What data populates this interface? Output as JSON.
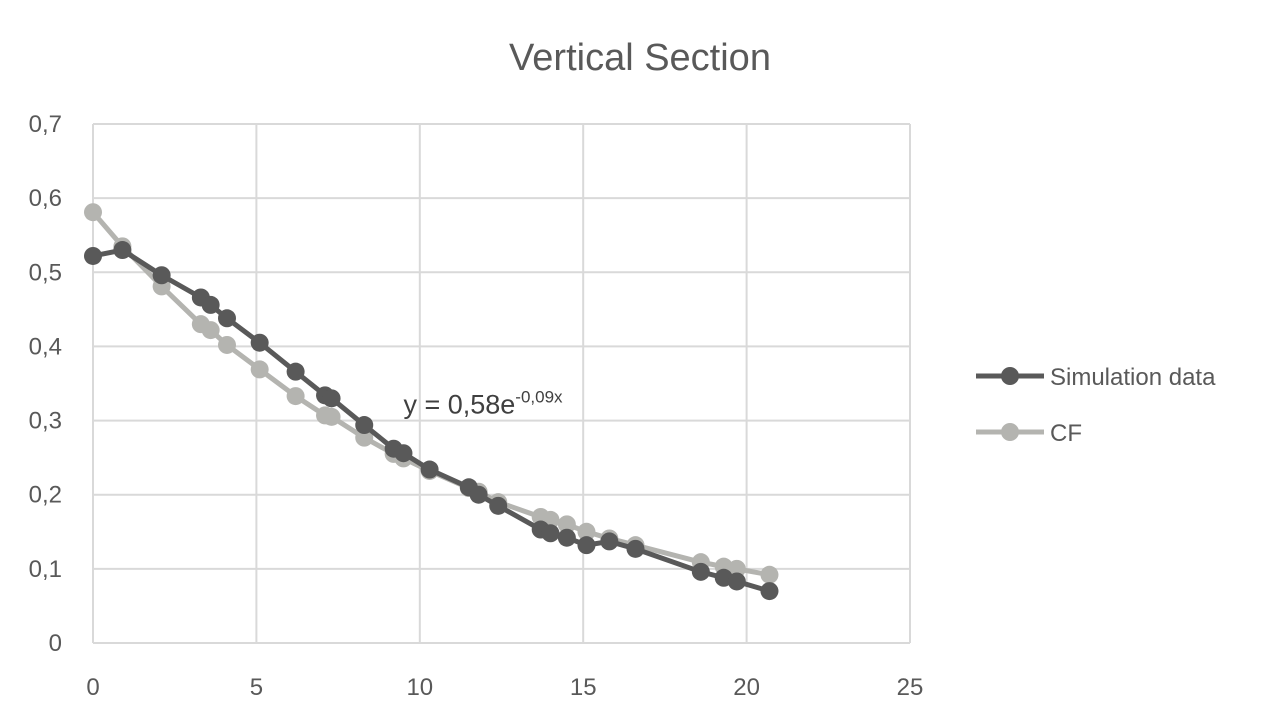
{
  "chart_data": {
    "type": "line",
    "title": "Vertical Section",
    "xlabel": "",
    "ylabel": "",
    "xlim": [
      0,
      25
    ],
    "ylim": [
      0,
      0.7
    ],
    "x_ticks": [
      0,
      5,
      10,
      15,
      20,
      25
    ],
    "y_ticks": [
      0,
      0.1,
      0.2,
      0.3,
      0.4,
      0.5,
      0.6,
      0.7
    ],
    "x_tick_labels": [
      "0",
      "5",
      "10",
      "15",
      "20",
      "25"
    ],
    "y_tick_labels": [
      "0",
      "0,1",
      "0,2",
      "0,3",
      "0,4",
      "0,5",
      "0,6",
      "0,7"
    ],
    "grid": true,
    "legend": "right",
    "annotation": {
      "prefix": "y = 0,58e",
      "exponent": "-0,09x",
      "x": 9.5,
      "y": 0.35
    },
    "series": [
      {
        "name": "Simulation data",
        "color": "#595959",
        "x": [
          0,
          0.9,
          2.1,
          3.3,
          3.6,
          4.1,
          5.1,
          6.2,
          7.1,
          7.3,
          8.3,
          9.2,
          9.5,
          10.3,
          11.5,
          11.8,
          12.4,
          13.7,
          14.0,
          14.5,
          15.1,
          15.8,
          16.6,
          18.6,
          19.3,
          19.7,
          20.7
        ],
        "y": [
          0.522,
          0.53,
          0.496,
          0.466,
          0.456,
          0.438,
          0.405,
          0.366,
          0.334,
          0.33,
          0.294,
          0.262,
          0.256,
          0.234,
          0.21,
          0.2,
          0.185,
          0.153,
          0.148,
          0.142,
          0.132,
          0.137,
          0.127,
          0.096,
          0.088,
          0.083,
          0.07
        ]
      },
      {
        "name": "CF",
        "color": "#b4b4b0",
        "x": [
          0,
          0.9,
          2.1,
          3.3,
          3.6,
          4.1,
          5.1,
          6.2,
          7.1,
          7.3,
          8.3,
          9.2,
          9.5,
          10.3,
          11.5,
          11.8,
          12.4,
          13.7,
          14.0,
          14.5,
          15.1,
          15.8,
          16.6,
          18.6,
          19.3,
          19.7,
          20.7
        ],
        "y": [
          0.581,
          0.535,
          0.481,
          0.43,
          0.422,
          0.402,
          0.369,
          0.333,
          0.307,
          0.305,
          0.277,
          0.255,
          0.249,
          0.232,
          0.209,
          0.204,
          0.19,
          0.17,
          0.166,
          0.16,
          0.15,
          0.141,
          0.132,
          0.109,
          0.103,
          0.1,
          0.092
        ]
      }
    ]
  }
}
